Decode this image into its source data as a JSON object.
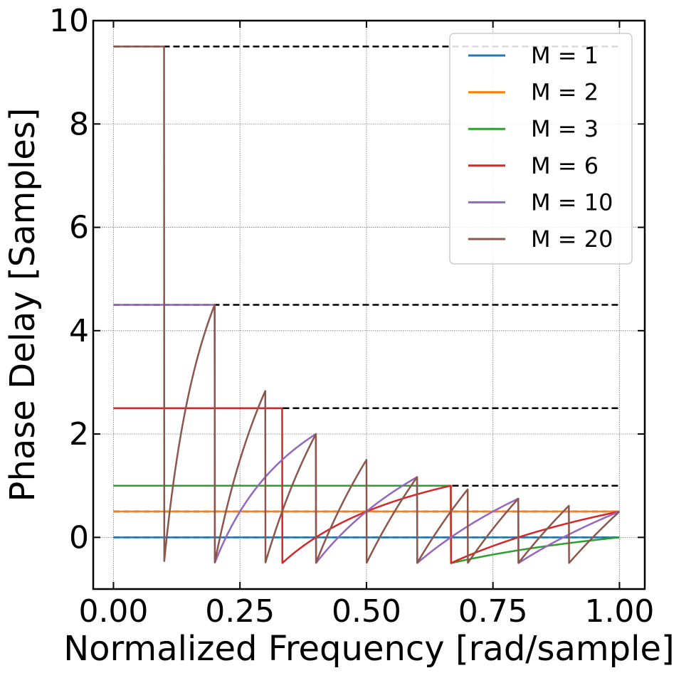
{
  "chart_data": {
    "type": "line",
    "title": "",
    "xlabel": "Normalized Frequency [rad/sample]",
    "ylabel": "Phase Delay [Samples]",
    "xlim": [
      -0.04,
      1.05
    ],
    "ylim": [
      -1,
      10
    ],
    "xticks": [
      0.0,
      0.25,
      0.5,
      0.75,
      1.0
    ],
    "xtick_labels": [
      "0.00",
      "0.25",
      "0.50",
      "0.75",
      "1.00"
    ],
    "yticks": [
      0,
      2,
      4,
      6,
      8,
      10
    ],
    "ytick_labels": [
      "0",
      "2",
      "4",
      "6",
      "8",
      "10"
    ],
    "grid": true,
    "legend_position": "top-right",
    "series": [
      {
        "name": "M = 1",
        "M": 1,
        "color": "#1f77b4"
      },
      {
        "name": "M = 2",
        "M": 2,
        "color": "#ff7f0e"
      },
      {
        "name": "M = 3",
        "M": 3,
        "color": "#2ca02c"
      },
      {
        "name": "M = 6",
        "M": 6,
        "color": "#d62728"
      },
      {
        "name": "M = 10",
        "M": 10,
        "color": "#9467bd"
      },
      {
        "name": "M = 20",
        "M": 20,
        "color": "#8c564b"
      }
    ],
    "reference_lines": [
      {
        "y": 9.5,
        "color": "#000000",
        "style": "dashed"
      },
      {
        "y": 4.5,
        "color": "#000000",
        "style": "dashed"
      },
      {
        "y": 2.5,
        "color": "#000000",
        "style": "dashed"
      },
      {
        "y": 1.0,
        "color": "#000000",
        "style": "dashed"
      },
      {
        "y": 0.5,
        "color": "#000000",
        "style": "dashed"
      },
      {
        "y": 0.0,
        "color": "#000000",
        "style": "dashed"
      }
    ]
  }
}
